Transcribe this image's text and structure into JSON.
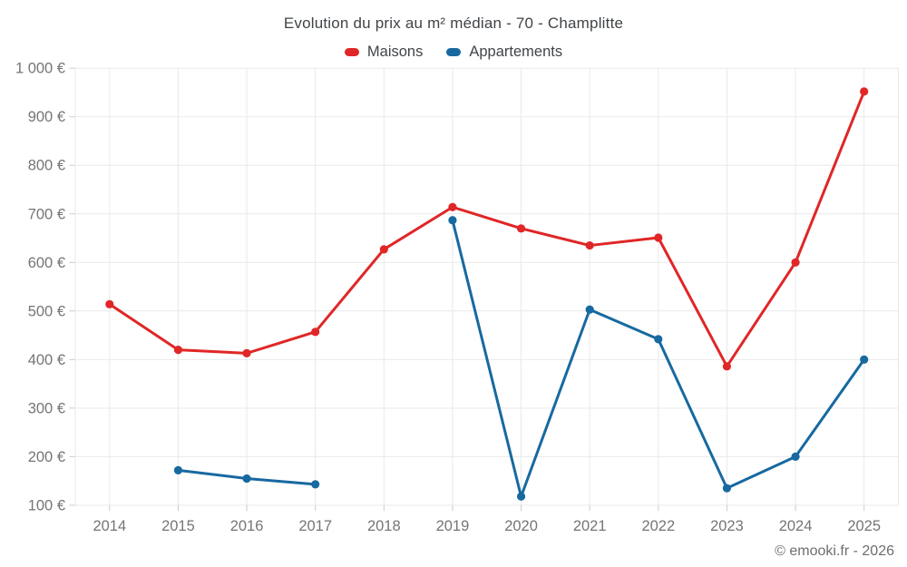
{
  "chart_data": {
    "type": "line",
    "title": "Evolution du prix au m² médian - 70 - Champlitte",
    "x": [
      "2014",
      "2015",
      "2016",
      "2017",
      "2018",
      "2019",
      "2020",
      "2021",
      "2022",
      "2023",
      "2024",
      "2025"
    ],
    "series": [
      {
        "name": "Maisons",
        "color": "#e02626",
        "values": [
          514,
          420,
          413,
          457,
          627,
          714,
          670,
          635,
          651,
          386,
          600,
          952
        ]
      },
      {
        "name": "Appartements",
        "color": "#1769a0",
        "values": [
          null,
          172,
          155,
          143,
          null,
          687,
          118,
          503,
          442,
          135,
          200,
          400
        ]
      }
    ],
    "ylim": [
      100,
      1000
    ],
    "ytick_step": 100,
    "ytick_labels": [
      "100 €",
      "200 €",
      "300 €",
      "400 €",
      "500 €",
      "600 €",
      "700 €",
      "800 €",
      "900 €",
      "1 000 €"
    ],
    "grid": true,
    "legend_position": "top",
    "colors": {
      "gridline": "#e9e9e9",
      "axis_tick": "#cccccc",
      "tick_text": "#757575",
      "title_text": "#404448"
    }
  },
  "footer": {
    "credit": "© emooki.fr - 2026"
  }
}
